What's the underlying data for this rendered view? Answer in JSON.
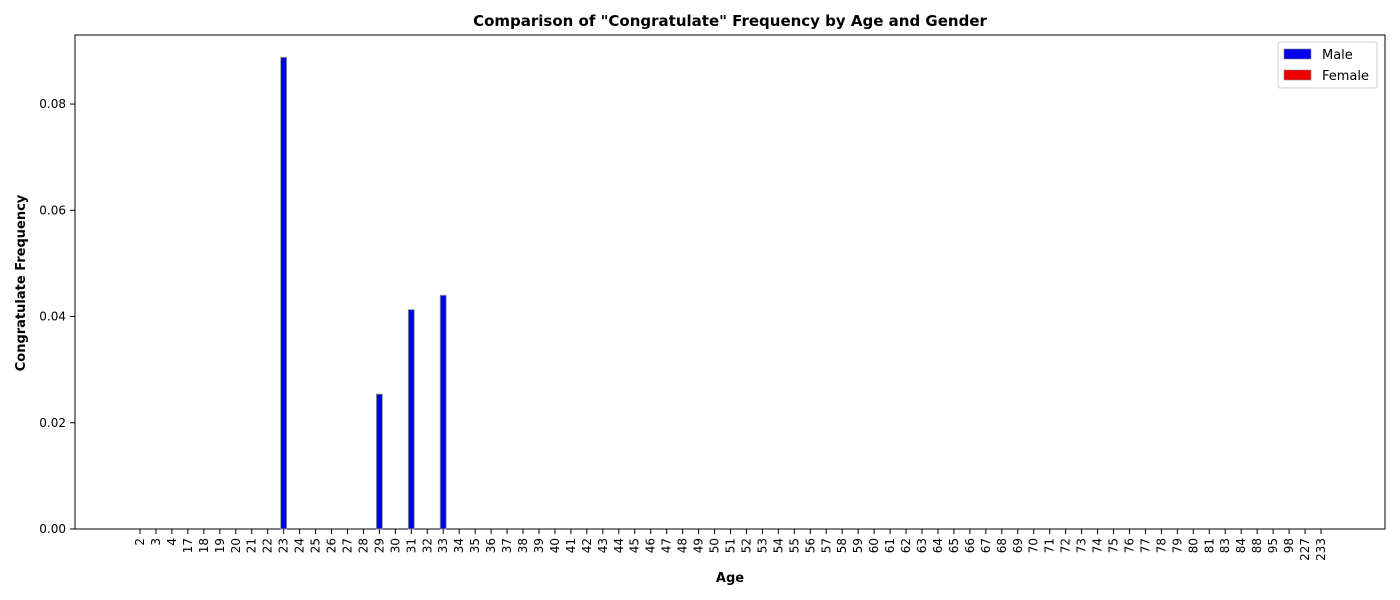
{
  "chart_data": {
    "type": "bar",
    "title": "Comparison of \"Congratulate\" Frequency by Age and Gender",
    "xlabel": "Age",
    "ylabel": "Congratulate Frequency",
    "ylim": [
      0,
      0.093
    ],
    "yticks": [
      "0.00",
      "0.02",
      "0.04",
      "0.06",
      "0.08"
    ],
    "categories": [
      "2",
      "3",
      "4",
      "17",
      "18",
      "19",
      "20",
      "21",
      "22",
      "23",
      "24",
      "25",
      "26",
      "27",
      "28",
      "29",
      "30",
      "31",
      "32",
      "33",
      "34",
      "35",
      "36",
      "37",
      "38",
      "39",
      "40",
      "41",
      "42",
      "43",
      "44",
      "45",
      "46",
      "47",
      "48",
      "49",
      "50",
      "51",
      "52",
      "53",
      "54",
      "55",
      "56",
      "57",
      "58",
      "59",
      "60",
      "61",
      "62",
      "63",
      "64",
      "65",
      "66",
      "67",
      "68",
      "69",
      "70",
      "71",
      "72",
      "73",
      "74",
      "75",
      "76",
      "77",
      "78",
      "79",
      "80",
      "81",
      "83",
      "84",
      "88",
      "95",
      "98",
      "227",
      "233"
    ],
    "series": [
      {
        "name": "Male",
        "color": "#0000ee",
        "values": [
          0,
          0,
          0,
          0,
          0,
          0,
          0,
          0,
          0,
          0.0888,
          0,
          0,
          0,
          0,
          0,
          0.0254,
          0,
          0.0413,
          0,
          0.044,
          0,
          0,
          0,
          0,
          0,
          0,
          0,
          0,
          0,
          0,
          0,
          0,
          0,
          0,
          0,
          0,
          0,
          0,
          0,
          0,
          0,
          0,
          0,
          0,
          0,
          0,
          0,
          0,
          0,
          0,
          0,
          0,
          0,
          0,
          0,
          0,
          0,
          0,
          0,
          0,
          0,
          0,
          0,
          0,
          0,
          0,
          0,
          0,
          0,
          0,
          0,
          0,
          0,
          0,
          0
        ]
      },
      {
        "name": "Female",
        "color": "#ee0000",
        "values": [
          0,
          0,
          0,
          0,
          0,
          0,
          0,
          0,
          0,
          0,
          0,
          0,
          0,
          0,
          0,
          0,
          0,
          0,
          0,
          0,
          0,
          0,
          0,
          0,
          0,
          0,
          0,
          0,
          0,
          0,
          0,
          0,
          0,
          0,
          0,
          0,
          0,
          0,
          0,
          0,
          0,
          0,
          0,
          0,
          0,
          0,
          0,
          0,
          0,
          0,
          0,
          0,
          0,
          0,
          0,
          0,
          0,
          0,
          0,
          0,
          0,
          0,
          0,
          0,
          0,
          0,
          0,
          0,
          0,
          0,
          0,
          0,
          0,
          0,
          0
        ]
      }
    ],
    "legend": "top-right",
    "grid": false
  }
}
